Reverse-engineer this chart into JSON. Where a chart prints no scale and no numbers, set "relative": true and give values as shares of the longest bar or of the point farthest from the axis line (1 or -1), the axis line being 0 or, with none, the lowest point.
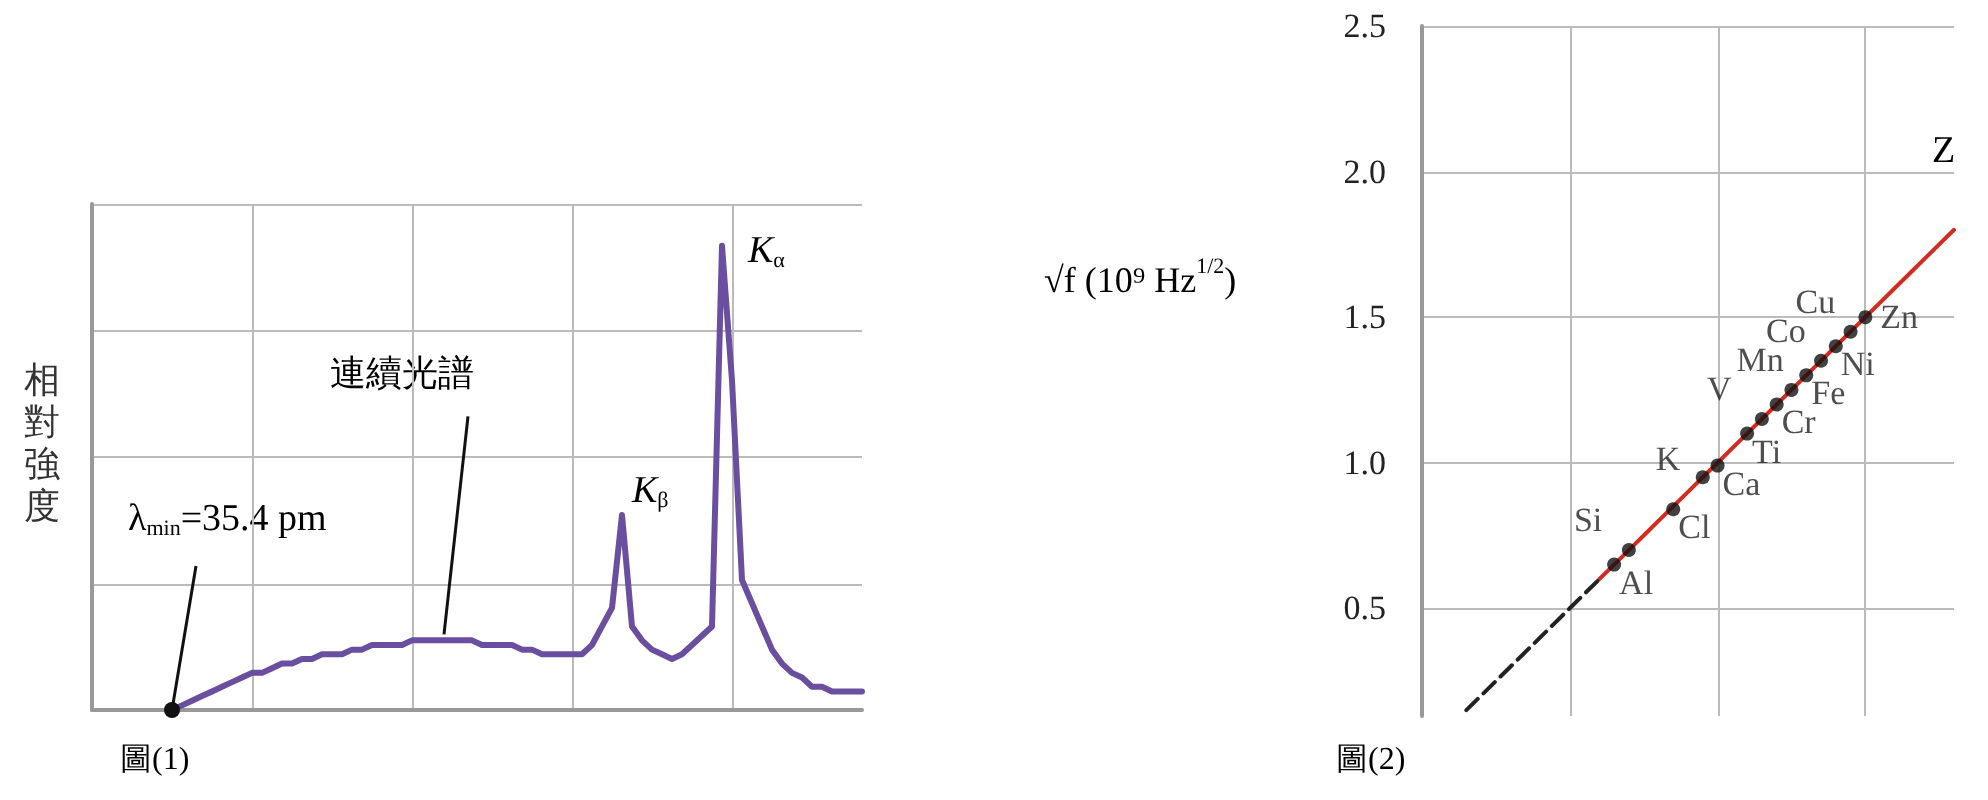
{
  "chart_data": [
    {
      "type": "line",
      "title": "圖(1)",
      "ylabel": "相對強度",
      "relative": true,
      "grid": true,
      "tick_labels": false,
      "color": "#6a4fa0",
      "annotations": [
        "λ$_{min}$=35.4 pm",
        "連續光譜",
        "K$_{β}$",
        "K$_{α}$"
      ],
      "categories": [
        null,
        null,
        null,
        null,
        null,
        null,
        null,
        null,
        null,
        null,
        null,
        null,
        null,
        null,
        null,
        null,
        null,
        null,
        null,
        null,
        null,
        null,
        null,
        null,
        null,
        null,
        null,
        null,
        null,
        null,
        null,
        null,
        null,
        null,
        null,
        null,
        null,
        null,
        null,
        null,
        null,
        null,
        null,
        null,
        null,
        null,
        null,
        null,
        null,
        null,
        null,
        null,
        null,
        null,
        null,
        null,
        null,
        null,
        null,
        null,
        null,
        null,
        null,
        null,
        null,
        null,
        null,
        null,
        null,
        null,
        null,
        null,
        null,
        null,
        null,
        null,
        null,
        null
      ],
      "values": [
        null,
        null,
        null,
        null,
        null,
        null,
        null,
        null,
        0,
        0.01,
        0.02,
        0.03,
        0.04,
        0.05,
        0.06,
        0.07,
        0.08,
        0.08,
        0.09,
        0.1,
        0.1,
        0.11,
        0.11,
        0.12,
        0.12,
        0.12,
        0.13,
        0.13,
        0.14,
        0.14,
        0.14,
        0.14,
        0.15,
        0.15,
        0.15,
        0.15,
        0.15,
        0.15,
        0.15,
        0.14,
        0.14,
        0.14,
        0.14,
        0.13,
        0.13,
        0.12,
        0.12,
        0.12,
        0.12,
        0.12,
        0.14,
        0.18,
        0.22,
        0.42,
        0.18,
        0.15,
        0.13,
        0.12,
        0.11,
        0.12,
        0.14,
        0.16,
        0.18,
        1.0,
        0.71,
        0.28,
        0.23,
        0.18,
        0.13,
        0.1,
        0.08,
        0.07,
        0.05,
        0.05,
        0.04,
        0.04,
        0.04,
        0.04
      ]
    },
    {
      "type": "scatter",
      "title": "圖(2)",
      "ylabel": "√f (10⁹ Hz$^{1/2}$)",
      "grid": true,
      "tick_labels": "y",
      "annotations": [
        "Z"
      ],
      "categories": [
        null,
        null,
        null,
        null,
        null,
        null,
        null,
        null,
        null,
        null,
        null,
        null,
        null,
        null,
        null,
        null,
        null,
        null,
        null,
        null,
        null,
        null,
        null,
        null,
        null,
        null,
        null,
        null,
        null,
        null,
        null,
        null,
        null,
        null,
        null,
        null,
        null
      ],
      "ylim": [
        0.13,
        2.5
      ],
      "yticks": [
        0.5,
        {
          "value": 1,
          "label": "1.0"
        },
        1.5,
        {
          "value": 2,
          "label": "2.0"
        },
        2.5
      ],
      "series": [
        {
          "marker": "circle",
          "color": "#111111",
          "values": [
            null,
            null,
            null,
            null,
            null,
            null,
            null,
            null,
            null,
            null,
            null,
            null,
            null,
            0.65,
            0.7,
            null,
            null,
            0.84,
            null,
            0.95,
            0.99,
            null,
            1.1,
            1.15,
            1.2,
            1.25,
            1.3,
            1.35,
            1.4,
            1.45,
            1.5,
            null,
            null,
            null,
            null,
            null,
            null
          ],
          "value_labels": [
            null,
            null,
            null,
            null,
            null,
            null,
            null,
            null,
            null,
            null,
            null,
            null,
            null,
            "Al",
            "Si",
            null,
            null,
            "Cl",
            null,
            "K",
            "Ca",
            null,
            "Ti",
            "V",
            "Cr",
            "Mn",
            "Fe",
            "Co",
            "Ni",
            "Cu",
            "Zn",
            null,
            null,
            null,
            null,
            null,
            null
          ]
        },
        {
          "type": "line",
          "color": "#d42a20",
          "values": [
            null,
            null,
            null,
            null,
            null,
            null,
            null,
            null,
            null,
            null,
            null,
            null,
            0.6,
            0.65,
            0.7,
            0.75,
            0.8,
            0.85,
            0.9,
            0.95,
            1.0,
            1.05,
            1.1,
            1.15,
            1.2,
            1.25,
            1.3,
            1.35,
            1.4,
            1.45,
            1.5,
            1.55,
            1.6,
            1.65,
            1.7,
            1.75,
            1.8
          ]
        },
        {
          "type": "line",
          "color": "#222222",
          "line_style": "dashed",
          "values": [
            null,
            null,
            null,
            0.15,
            0.2,
            0.25,
            0.3,
            0.35,
            0.4,
            0.45,
            0.5,
            0.55,
            0.6,
            null,
            null,
            null,
            null,
            null,
            null,
            null,
            null,
            null,
            null,
            null,
            null,
            null,
            null,
            null,
            null,
            null,
            null,
            null,
            null,
            null,
            null,
            null,
            null
          ]
        }
      ]
    }
  ]
}
